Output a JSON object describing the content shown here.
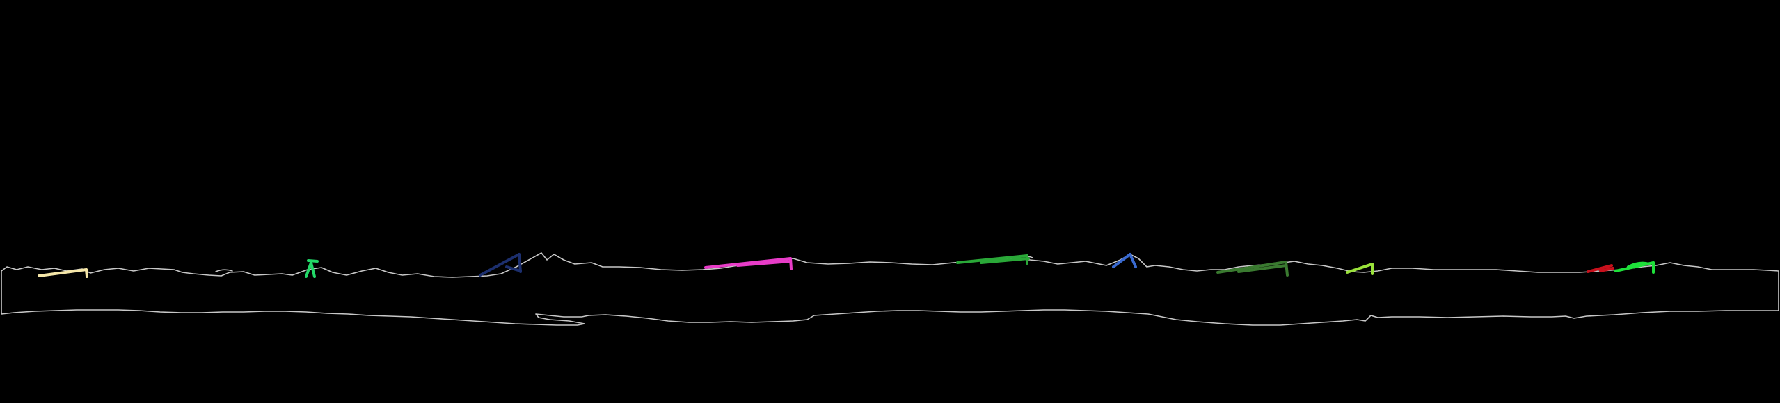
{
  "canvas": {
    "background": "#000000",
    "outline_color": "#c8c8c8"
  },
  "markers": [
    {
      "name": "marker-cream",
      "color": "#f5e6a8"
    },
    {
      "name": "marker-spring-green",
      "color": "#22d868"
    },
    {
      "name": "marker-navy",
      "color": "#1c2f6e"
    },
    {
      "name": "marker-magenta",
      "color": "#e83cc8"
    },
    {
      "name": "marker-green",
      "color": "#2aa838"
    },
    {
      "name": "marker-blue",
      "color": "#3a6ad0"
    },
    {
      "name": "marker-dark-green",
      "color": "#3a7a30"
    },
    {
      "name": "marker-lime",
      "color": "#9ae23a"
    },
    {
      "name": "marker-red",
      "color": "#c8101c"
    },
    {
      "name": "marker-bright-green",
      "color": "#1ee03a"
    }
  ]
}
